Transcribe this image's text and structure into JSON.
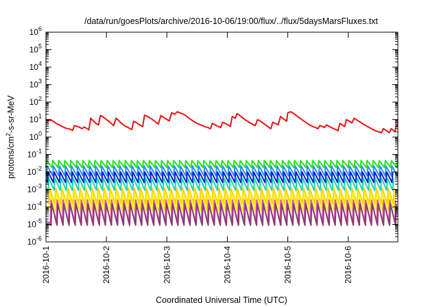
{
  "chart_data": {
    "type": "line",
    "title": "/data/run/goesPlots/archive/2016-10-06/19:00/flux/../flux/5daysMarsFluxes.txt",
    "xlabel": "Coordinated Universal Time (UTC)",
    "ylabel": {
      "prefix": "protons/cm",
      "superscript": "2",
      "suffix": "-s-sr-MeV"
    },
    "yscale": "log",
    "ylim": [
      1e-06,
      1000000.0
    ],
    "xlim": [
      0,
      5.82
    ],
    "y_ticks": [
      {
        "exp": "-6"
      },
      {
        "exp": "-5"
      },
      {
        "exp": "-4"
      },
      {
        "exp": "-3"
      },
      {
        "exp": "-2"
      },
      {
        "exp": "-1"
      },
      {
        "exp": "0"
      },
      {
        "exp": "1"
      },
      {
        "exp": "2"
      },
      {
        "exp": "3"
      },
      {
        "exp": "4"
      },
      {
        "exp": "5"
      },
      {
        "exp": "6"
      }
    ],
    "x_ticks": [
      {
        "x": 0,
        "label": "2016-10-1"
      },
      {
        "x": 1,
        "label": "2016-10-2"
      },
      {
        "x": 2,
        "label": "2016-10-3"
      },
      {
        "x": 3,
        "label": "2016-10-4"
      },
      {
        "x": 4,
        "label": "2016-10-5"
      },
      {
        "x": 5,
        "label": "2016-10-6"
      }
    ],
    "grid": false,
    "legend": "none",
    "main_series": {
      "color": "#ee1111",
      "points": [
        [
          0.0,
          10
        ],
        [
          0.05,
          9
        ],
        [
          0.1,
          9
        ],
        [
          0.13,
          7.5
        ],
        [
          0.17,
          6
        ],
        [
          0.22,
          5
        ],
        [
          0.27,
          4
        ],
        [
          0.32,
          3.3
        ],
        [
          0.37,
          3
        ],
        [
          0.41,
          2.7
        ],
        [
          0.44,
          2.4
        ],
        [
          0.47,
          4.5
        ],
        [
          0.52,
          4
        ],
        [
          0.56,
          3.5
        ],
        [
          0.6,
          3
        ],
        [
          0.63,
          3.8
        ],
        [
          0.67,
          3.2
        ],
        [
          0.71,
          2.6
        ],
        [
          0.74,
          12
        ],
        [
          0.79,
          8
        ],
        [
          0.83,
          6
        ],
        [
          0.87,
          5
        ],
        [
          0.9,
          17
        ],
        [
          0.95,
          14
        ],
        [
          1.0,
          10
        ],
        [
          1.04,
          8
        ],
        [
          1.08,
          6
        ],
        [
          1.12,
          4.5
        ],
        [
          1.16,
          12
        ],
        [
          1.2,
          9
        ],
        [
          1.24,
          6.5
        ],
        [
          1.28,
          5
        ],
        [
          1.32,
          4
        ],
        [
          1.36,
          3.5
        ],
        [
          1.39,
          3
        ],
        [
          1.42,
          2.7
        ],
        [
          1.45,
          8
        ],
        [
          1.5,
          6.5
        ],
        [
          1.55,
          5
        ],
        [
          1.6,
          4
        ],
        [
          1.63,
          18
        ],
        [
          1.68,
          15
        ],
        [
          1.73,
          12
        ],
        [
          1.78,
          9
        ],
        [
          1.82,
          7
        ],
        [
          1.86,
          5.5
        ],
        [
          1.9,
          17
        ],
        [
          1.95,
          13
        ],
        [
          2.0,
          10
        ],
        [
          2.04,
          8.5
        ],
        [
          2.08,
          25
        ],
        [
          2.13,
          20
        ],
        [
          2.17,
          28
        ],
        [
          2.22,
          24
        ],
        [
          2.28,
          20
        ],
        [
          2.33,
          15
        ],
        [
          2.38,
          11
        ],
        [
          2.44,
          8
        ],
        [
          2.5,
          6
        ],
        [
          2.56,
          5
        ],
        [
          2.62,
          4
        ],
        [
          2.68,
          3.5
        ],
        [
          2.72,
          3
        ],
        [
          2.75,
          6
        ],
        [
          2.8,
          5
        ],
        [
          2.85,
          4
        ],
        [
          2.89,
          3.5
        ],
        [
          2.92,
          7
        ],
        [
          2.97,
          6
        ],
        [
          3.01,
          5
        ],
        [
          3.05,
          4
        ],
        [
          3.08,
          15
        ],
        [
          3.13,
          12
        ],
        [
          3.16,
          22
        ],
        [
          3.21,
          17
        ],
        [
          3.26,
          12
        ],
        [
          3.31,
          9
        ],
        [
          3.36,
          7
        ],
        [
          3.41,
          5.5
        ],
        [
          3.46,
          4.5
        ],
        [
          3.5,
          10
        ],
        [
          3.55,
          8
        ],
        [
          3.6,
          6
        ],
        [
          3.65,
          4.5
        ],
        [
          3.69,
          3.5
        ],
        [
          3.72,
          3
        ],
        [
          3.75,
          7
        ],
        [
          3.8,
          6
        ],
        [
          3.84,
          5
        ],
        [
          3.88,
          15
        ],
        [
          3.93,
          11
        ],
        [
          3.98,
          8
        ],
        [
          4.0,
          25
        ],
        [
          4.05,
          28
        ],
        [
          4.1,
          22
        ],
        [
          4.15,
          16
        ],
        [
          4.2,
          12
        ],
        [
          4.26,
          8.5
        ],
        [
          4.31,
          6.5
        ],
        [
          4.36,
          5
        ],
        [
          4.41,
          4
        ],
        [
          4.46,
          3.5
        ],
        [
          4.5,
          3
        ],
        [
          4.53,
          4.5
        ],
        [
          4.57,
          4
        ],
        [
          4.61,
          3.5
        ],
        [
          4.64,
          5
        ],
        [
          4.68,
          4.2
        ],
        [
          4.72,
          3.5
        ],
        [
          4.76,
          3
        ],
        [
          4.8,
          2.6
        ],
        [
          4.83,
          2.3
        ],
        [
          4.86,
          6
        ],
        [
          4.9,
          5
        ],
        [
          4.94,
          4
        ],
        [
          4.97,
          10
        ],
        [
          5.02,
          8
        ],
        [
          5.06,
          6.5
        ],
        [
          5.1,
          12
        ],
        [
          5.15,
          9
        ],
        [
          5.2,
          7
        ],
        [
          5.25,
          5.5
        ],
        [
          5.3,
          4.3
        ],
        [
          5.35,
          3.5
        ],
        [
          5.4,
          2.8
        ],
        [
          5.45,
          2.3
        ],
        [
          5.5,
          2
        ],
        [
          5.55,
          1.8
        ],
        [
          5.58,
          3
        ],
        [
          5.62,
          2.5
        ],
        [
          5.65,
          2.1
        ],
        [
          5.68,
          1.8
        ],
        [
          5.71,
          3
        ],
        [
          5.74,
          2.5
        ],
        [
          5.77,
          2
        ],
        [
          5.8,
          5
        ],
        [
          5.82,
          4
        ]
      ]
    },
    "sawtooth_series": [
      {
        "color": "#1ee61e",
        "peak": 0.045,
        "trough": 0.018,
        "phase": 0.0
      },
      {
        "color": "#2a8cff",
        "peak": 0.022,
        "trough": 0.006,
        "phase": 0.012
      },
      {
        "color": "#0a1ed2",
        "peak": 0.01,
        "trough": 0.0025,
        "phase": 0.024
      },
      {
        "color": "#1ed2b4",
        "peak": 0.0045,
        "trough": 0.0009,
        "phase": 0.036
      },
      {
        "color": "#ffd200",
        "peak": 0.0012,
        "trough": 0.00015,
        "phase": 0.048
      },
      {
        "color": "#f5f51e",
        "peak": 0.0006,
        "trough": 6e-05,
        "phase": 0.06
      },
      {
        "color": "#dc50c8",
        "peak": 0.00025,
        "trough": 1.2e-05,
        "phase": 0.072
      },
      {
        "color": "#8c3c6e",
        "peak": 0.00015,
        "trough": 9e-06,
        "phase": 0.084
      }
    ],
    "sawtooth_period_days": 0.1
  }
}
